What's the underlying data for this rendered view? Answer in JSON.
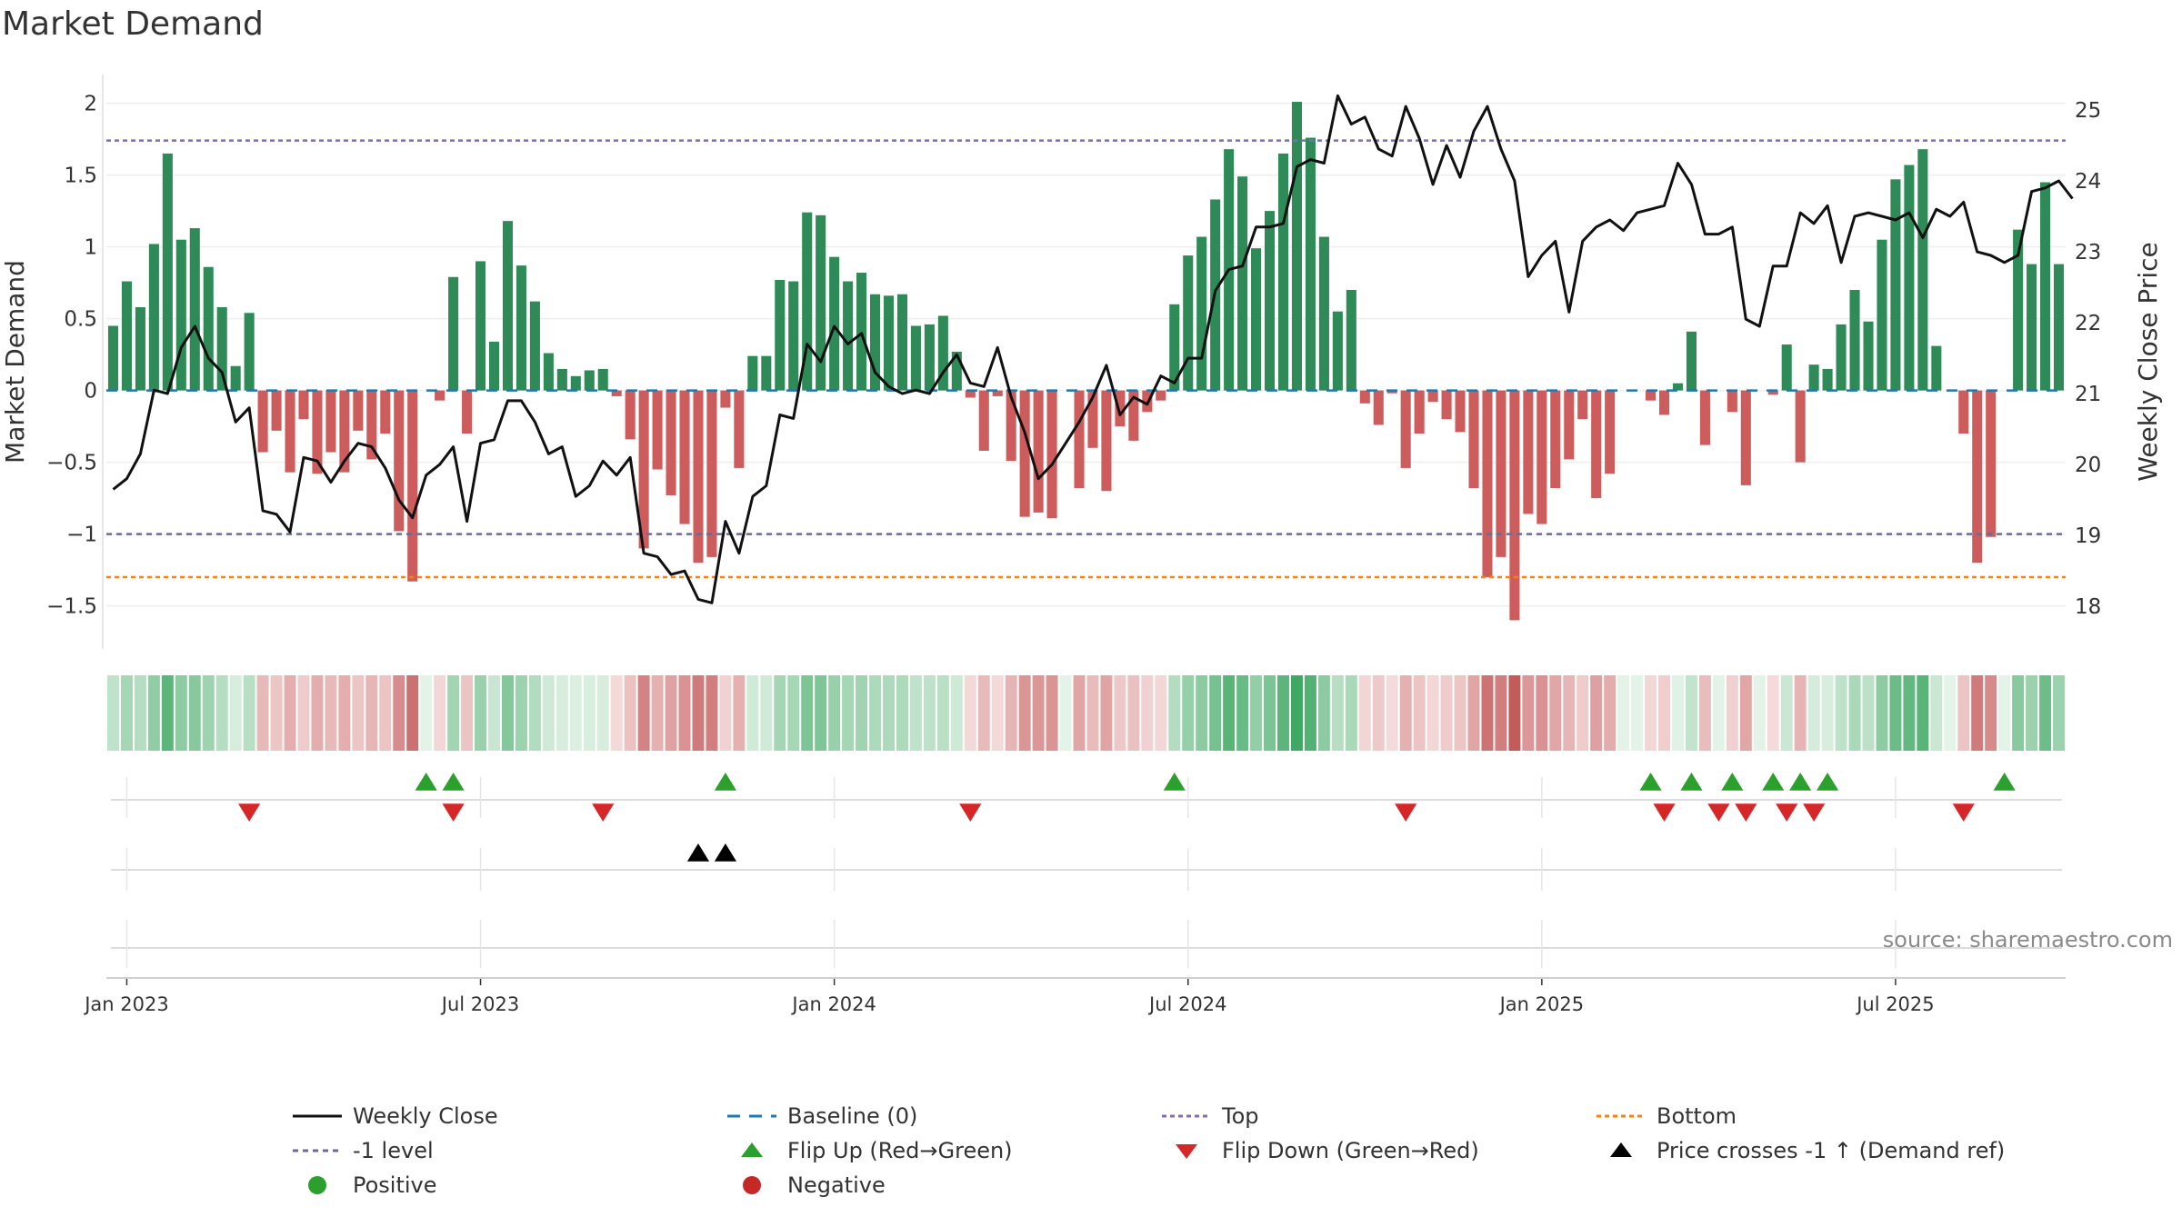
{
  "chart_data": {
    "type": "bar",
    "title": "Market Demand",
    "ylabel": "Market Demand",
    "y2label": "Weekly Close Price",
    "ylim": [
      -1.8,
      2.2
    ],
    "y2lim": [
      17.4,
      25.5
    ],
    "yticks": [
      -1.5,
      -1,
      -0.5,
      0,
      0.5,
      1,
      1.5,
      2
    ],
    "yticklabels": [
      "−1.5",
      "−1",
      "−0.5",
      "0",
      "0.5",
      "1",
      "1.5",
      "2"
    ],
    "y2ticks": [
      18,
      19,
      20,
      21,
      22,
      23,
      24,
      25
    ],
    "y2ticklabels": [
      "18",
      "19",
      "20",
      "21",
      "22",
      "23",
      "24",
      "25"
    ],
    "xtick_labels": [
      "Jan 2023",
      "Jul 2023",
      "Jan 2024",
      "Jul 2024",
      "Jan 2025",
      "Jul 2025"
    ],
    "xtick_weeks": [
      1,
      27,
      53,
      79,
      105,
      131
    ],
    "reference_lines": {
      "top": 1.74,
      "level_minus1": -1,
      "bottom": -1.3,
      "baseline": 0
    },
    "series": [
      {
        "name": "Market Demand",
        "type": "bar",
        "values": [
          0.45,
          0.76,
          0.58,
          1.02,
          1.65,
          1.05,
          1.13,
          0.86,
          0.58,
          0.17,
          0.54,
          -0.43,
          -0.28,
          -0.57,
          -0.2,
          -0.58,
          -0.43,
          -0.57,
          -0.28,
          -0.48,
          -0.3,
          -0.98,
          -1.33,
          0,
          -0.07,
          0.79,
          -0.3,
          0.9,
          0.34,
          1.18,
          0.87,
          0.62,
          0.26,
          0.15,
          0.1,
          0.14,
          0.15,
          -0.04,
          -0.34,
          -1.1,
          -0.55,
          -0.73,
          -0.93,
          -1.2,
          -1.16,
          -0.12,
          -0.54,
          0.24,
          0.24,
          0.77,
          0.76,
          1.24,
          1.22,
          0.93,
          0.76,
          0.82,
          0.67,
          0.66,
          0.67,
          0.45,
          0.46,
          0.52,
          0.27,
          -0.05,
          -0.42,
          -0.04,
          -0.49,
          -0.88,
          -0.85,
          -0.89,
          0,
          -0.68,
          -0.4,
          -0.7,
          -0.25,
          -0.35,
          -0.15,
          -0.07,
          0.6,
          0.94,
          1.07,
          1.33,
          1.68,
          1.49,
          0.99,
          1.25,
          1.65,
          2.01,
          1.76,
          1.07,
          0.55,
          0.7,
          -0.09,
          -0.24,
          -0.02,
          -0.54,
          -0.3,
          -0.08,
          -0.2,
          -0.29,
          -0.68,
          -1.3,
          -1.16,
          -1.6,
          -0.86,
          -0.93,
          -0.68,
          -0.48,
          -0.2,
          -0.75,
          -0.58,
          0,
          0,
          -0.07,
          -0.17,
          0.05,
          0.41,
          -0.38,
          0,
          -0.15,
          -0.66,
          0,
          -0.03,
          0.32,
          -0.5,
          0.18,
          0.15,
          0.46,
          0.7,
          0.48,
          1.05,
          1.47,
          1.57,
          1.68,
          0.31,
          0,
          -0.3,
          -1.2,
          -1.02,
          0,
          1.12,
          0.88,
          1.45,
          0.88
        ]
      },
      {
        "name": "Weekly Close",
        "type": "line",
        "axis": "right",
        "values": [
          19.65,
          19.8,
          20.15,
          21.05,
          21.0,
          21.65,
          21.95,
          21.5,
          21.3,
          20.6,
          20.8,
          19.35,
          19.3,
          19.05,
          20.1,
          20.05,
          19.75,
          20.05,
          20.3,
          20.25,
          19.95,
          19.5,
          19.25,
          19.85,
          20.0,
          20.25,
          19.2,
          20.3,
          20.35,
          20.9,
          20.9,
          20.6,
          20.15,
          20.25,
          19.55,
          19.7,
          20.05,
          19.85,
          20.1,
          18.75,
          18.7,
          18.45,
          18.5,
          18.1,
          18.05,
          19.2,
          18.75,
          19.55,
          19.7,
          20.7,
          20.65,
          21.7,
          21.45,
          21.95,
          21.7,
          21.85,
          21.3,
          21.1,
          21.0,
          21.05,
          21.0,
          21.3,
          21.55,
          21.15,
          21.1,
          21.65,
          20.95,
          20.45,
          19.8,
          20.0,
          20.3,
          20.6,
          20.95,
          21.4,
          20.7,
          20.95,
          20.85,
          21.25,
          21.15,
          21.5,
          21.5,
          22.45,
          22.75,
          22.8,
          23.35,
          23.35,
          23.4,
          24.2,
          24.3,
          24.25,
          25.2,
          24.8,
          24.9,
          24.45,
          24.35,
          25.05,
          24.6,
          23.95,
          24.5,
          24.05,
          24.7,
          25.05,
          24.45,
          24.0,
          22.65,
          22.95,
          23.15,
          22.15,
          23.15,
          23.35,
          23.45,
          23.3,
          23.55,
          23.6,
          23.65,
          24.25,
          23.95,
          23.25,
          23.25,
          23.35,
          22.05,
          21.95,
          22.8,
          22.8,
          23.55,
          23.4,
          23.65,
          22.85,
          23.5,
          23.55,
          23.5,
          23.45,
          23.55,
          23.2,
          23.6,
          23.5,
          23.7,
          23.0,
          22.95,
          22.85,
          22.95,
          23.85,
          23.9,
          24.0,
          23.75
        ]
      }
    ],
    "flip_up_weeks": [
      23,
      25,
      45,
      78,
      113,
      116,
      119,
      122,
      124,
      126,
      139
    ],
    "flip_down_weeks": [
      10,
      25,
      36,
      63,
      95,
      114,
      118,
      120,
      123,
      125,
      136
    ],
    "price_cross_weeks": [
      43,
      45
    ],
    "legend": [
      "Weekly Close",
      "Baseline (0)",
      "Top",
      "Bottom",
      "-1 level",
      "Flip Up (Red→Green)",
      "Flip Down (Green→Red)",
      "Price crosses -1 ↑ (Demand ref)",
      "Positive",
      "Negative"
    ]
  },
  "colors": {
    "positive_bar": "#2e8b57",
    "negative_bar": "#cd5c5c",
    "price_line": "#111111",
    "baseline": "#1f77b4",
    "top_line": "#7b6fb5",
    "minus1_line": "#6b6b8f",
    "bottom_line": "#ff7f0e",
    "flip_up": "#2ca02c",
    "flip_down": "#d62728",
    "price_cross": "#000000",
    "positive_dot": "#2ca02c",
    "negative_dot": "#c62828"
  },
  "source_text": "source: sharemaestro.com"
}
